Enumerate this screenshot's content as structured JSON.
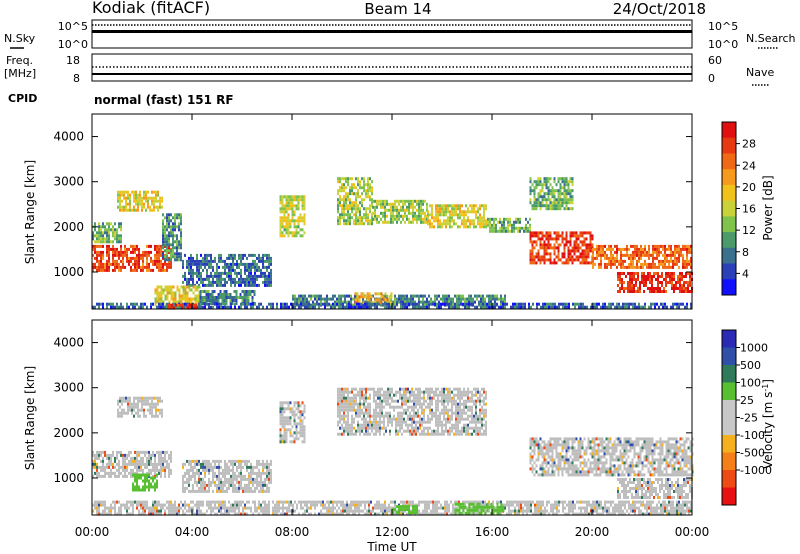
{
  "header": {
    "radar": "Kodiak (fitACF)",
    "beam": "Beam 14",
    "date": "24/Oct/2018"
  },
  "info": {
    "nsky_label": "N.Sky",
    "nsky_ticks": [
      "10^5",
      "10^0"
    ],
    "nsearch_label": "N.Search",
    "nsearch_ticks": [
      "10^5",
      "10^0"
    ],
    "freq_label": "Freq.",
    "freq_unit": "[MHz]",
    "freq_ticks": [
      "18",
      "8"
    ],
    "nave_label": "Nave",
    "nave_ticks": [
      "60",
      "0"
    ],
    "cpid_label": "CPID",
    "cpid_value": "normal (fast) 151 RF"
  },
  "colors": {
    "power_scale": [
      "#1010ff",
      "#2b40b8",
      "#3a6f8e",
      "#4a9a6a",
      "#7fc24c",
      "#c9d23a",
      "#f2c21c",
      "#f59a1c",
      "#f06a16",
      "#e83a12",
      "#e01010"
    ],
    "velocity_scale": [
      "#2a2ab4",
      "#2f4fa8",
      "#2f7a5a",
      "#58c030",
      "#c8c8c8",
      "#c8c8c8",
      "#f5b020",
      "#f57f18",
      "#ee4a14",
      "#e81010"
    ],
    "ground_scatter": "#bebebe"
  },
  "chart_data": [
    {
      "type": "heatmap",
      "title": "Power",
      "ylabel": "Slant Range [km]",
      "xlabel": "",
      "x_range_ut_hours": [
        0,
        24
      ],
      "x_ticks": [
        "00:00",
        "04:00",
        "08:00",
        "12:00",
        "16:00",
        "20:00",
        "00:00"
      ],
      "ylim": [
        180,
        4500
      ],
      "y_ticks": [
        1000,
        2000,
        3000,
        4000
      ],
      "colorbar": {
        "label": "Power [dB]",
        "range": [
          0,
          32
        ],
        "ticks": [
          "4",
          "8",
          "12",
          "16",
          "20",
          "24",
          "28"
        ]
      },
      "regions": [
        {
          "t0": 0.0,
          "t1": 3.2,
          "r0": 1050,
          "r1": 1600,
          "value": 27
        },
        {
          "t0": 0.0,
          "t1": 1.2,
          "r0": 1700,
          "r1": 2100,
          "value": 12
        },
        {
          "t0": 1.0,
          "t1": 2.8,
          "r0": 2400,
          "r1": 2800,
          "value": 18
        },
        {
          "t0": 2.8,
          "t1": 3.6,
          "r0": 1300,
          "r1": 2300,
          "value": 9
        },
        {
          "t0": 3.6,
          "t1": 7.2,
          "r0": 700,
          "r1": 1400,
          "value": 7
        },
        {
          "t0": 2.5,
          "t1": 4.3,
          "r0": 280,
          "r1": 700,
          "value": 17
        },
        {
          "t0": 4.3,
          "t1": 6.5,
          "r0": 280,
          "r1": 600,
          "value": 8
        },
        {
          "t0": 7.5,
          "t1": 8.5,
          "r0": 1800,
          "r1": 2700,
          "value": 16
        },
        {
          "t0": 9.8,
          "t1": 11.2,
          "r0": 2100,
          "r1": 3100,
          "value": 15
        },
        {
          "t0": 11.2,
          "t1": 13.4,
          "r0": 2100,
          "r1": 2600,
          "value": 14
        },
        {
          "t0": 13.4,
          "t1": 15.8,
          "r0": 2000,
          "r1": 2500,
          "value": 17
        },
        {
          "t0": 15.8,
          "t1": 17.5,
          "r0": 1900,
          "r1": 2200,
          "value": 12
        },
        {
          "t0": 17.5,
          "t1": 19.2,
          "r0": 2400,
          "r1": 3100,
          "value": 12
        },
        {
          "t0": 17.5,
          "t1": 20.0,
          "r0": 1200,
          "r1": 1900,
          "value": 28
        },
        {
          "t0": 20.0,
          "t1": 24.0,
          "r0": 1100,
          "r1": 1600,
          "value": 25
        },
        {
          "t0": 21.0,
          "t1": 24.0,
          "r0": 550,
          "r1": 1000,
          "value": 29
        },
        {
          "t0": 8.0,
          "t1": 16.5,
          "r0": 280,
          "r1": 500,
          "value": 9
        },
        {
          "t0": 10.5,
          "t1": 12.0,
          "r0": 300,
          "r1": 550,
          "value": 20
        },
        {
          "t0": 0.0,
          "t1": 24.0,
          "r0": 200,
          "r1": 320,
          "value": 6
        },
        {
          "t0": 3.0,
          "t1": 4.2,
          "r0": 180,
          "r1": 300,
          "value": 30
        }
      ]
    },
    {
      "type": "heatmap",
      "title": "Velocity",
      "ylabel": "Slant Range [km]",
      "xlabel": "Time UT",
      "x_range_ut_hours": [
        0,
        24
      ],
      "x_ticks": [
        "00:00",
        "04:00",
        "08:00",
        "12:00",
        "16:00",
        "20:00",
        "00:00"
      ],
      "ylim": [
        180,
        4500
      ],
      "y_ticks": [
        1000,
        2000,
        3000,
        4000
      ],
      "colorbar": {
        "label": "Velocity [m s-1]",
        "range": [
          -1250,
          1250
        ],
        "ticks": [
          "1000",
          "500",
          "100",
          "25",
          "-25",
          "-100",
          "-500",
          "-1000"
        ]
      },
      "regions": [
        {
          "t0": 0.0,
          "t1": 3.2,
          "r0": 1050,
          "r1": 1600,
          "value": 0
        },
        {
          "t0": 1.6,
          "t1": 2.6,
          "r0": 750,
          "r1": 1100,
          "value": 110
        },
        {
          "t0": 1.0,
          "t1": 2.8,
          "r0": 2400,
          "r1": 2800,
          "value": 0
        },
        {
          "t0": 3.6,
          "t1": 7.2,
          "r0": 700,
          "r1": 1400,
          "value": 0
        },
        {
          "t0": 7.5,
          "t1": 8.5,
          "r0": 1800,
          "r1": 2700,
          "value": 0
        },
        {
          "t0": 9.8,
          "t1": 15.8,
          "r0": 2000,
          "r1": 3000,
          "value": 0
        },
        {
          "t0": 17.5,
          "t1": 24.0,
          "r0": 1100,
          "r1": 1900,
          "value": 0
        },
        {
          "t0": 21.0,
          "t1": 24.0,
          "r0": 550,
          "r1": 1000,
          "value": 0
        },
        {
          "t0": 0.0,
          "t1": 24.0,
          "r0": 200,
          "r1": 500,
          "value": 0
        },
        {
          "t0": 14.5,
          "t1": 16.5,
          "r0": 250,
          "r1": 450,
          "value": 110
        },
        {
          "t0": 12.0,
          "t1": 13.0,
          "r0": 250,
          "r1": 400,
          "value": 110
        }
      ]
    }
  ]
}
